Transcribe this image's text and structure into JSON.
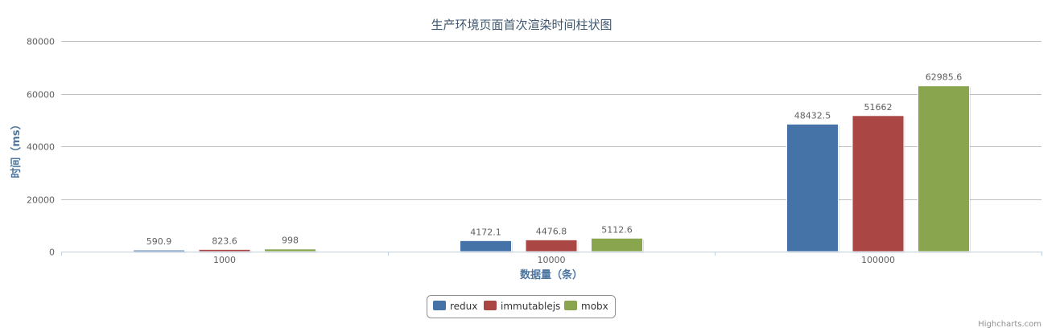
{
  "chart_data": {
    "type": "bar",
    "title": "生产环境页面首次渲染时间柱状图",
    "xlabel": "数据量（条）",
    "ylabel": "时间（ms）",
    "categories": [
      "1000",
      "10000",
      "100000"
    ],
    "yticks": [
      "0",
      "20000",
      "40000",
      "60000",
      "80000"
    ],
    "ylim": [
      0,
      80000
    ],
    "grid": true,
    "legend_position": "bottom-center",
    "series": [
      {
        "name": "redux",
        "color": "#4572A7",
        "values": [
          590.9,
          4172.1,
          48432.5
        ],
        "labels": [
          "590.9",
          "4172.1",
          "48432.5"
        ]
      },
      {
        "name": "immutablejs",
        "color": "#AA4643",
        "values": [
          823.6,
          4476.8,
          51662
        ],
        "labels": [
          "823.6",
          "4476.8",
          "51662"
        ]
      },
      {
        "name": "mobx",
        "color": "#89A54E",
        "values": [
          998,
          5112.6,
          62985.6
        ],
        "labels": [
          "998",
          "5112.6",
          "62985.6"
        ]
      }
    ]
  },
  "credits": "Highcharts.com"
}
